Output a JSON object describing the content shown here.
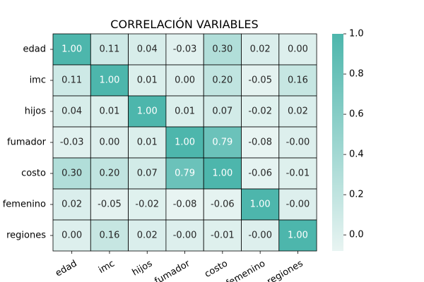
{
  "chart_data": {
    "type": "heatmap",
    "title": "CORRELACIÓN VARIABLES",
    "x_labels": [
      "edad",
      "imc",
      "hijos",
      "fumador",
      "costo",
      "femenino",
      "regiones"
    ],
    "y_labels": [
      "edad",
      "imc",
      "hijos",
      "fumador",
      "costo",
      "femenino",
      "regiones"
    ],
    "values": [
      [
        1.0,
        0.11,
        0.04,
        -0.03,
        0.3,
        0.02,
        0.0
      ],
      [
        0.11,
        1.0,
        0.01,
        0.0,
        0.2,
        -0.05,
        0.16
      ],
      [
        0.04,
        0.01,
        1.0,
        0.01,
        0.07,
        -0.02,
        0.02
      ],
      [
        -0.03,
        0.0,
        0.01,
        1.0,
        0.79,
        -0.08,
        -0.0
      ],
      [
        0.3,
        0.2,
        0.07,
        0.79,
        1.0,
        -0.06,
        -0.01
      ],
      [
        0.02,
        -0.05,
        -0.02,
        -0.08,
        -0.06,
        1.0,
        -0.0
      ],
      [
        0.0,
        0.16,
        0.02,
        -0.0,
        -0.01,
        -0.0,
        1.0
      ]
    ],
    "value_format": "0.00",
    "colorbar": {
      "vmin": -0.08,
      "vmax": 1.0,
      "ticks": [
        "0.0",
        "0.2",
        "0.4",
        "0.6",
        "0.8",
        "1.0"
      ],
      "color_low": "#e8f4f2",
      "color_high": "#4db6ac"
    },
    "cell_border_color": "#000000",
    "annotation_light_color": "#ffffff",
    "annotation_dark_color": "#262626"
  }
}
